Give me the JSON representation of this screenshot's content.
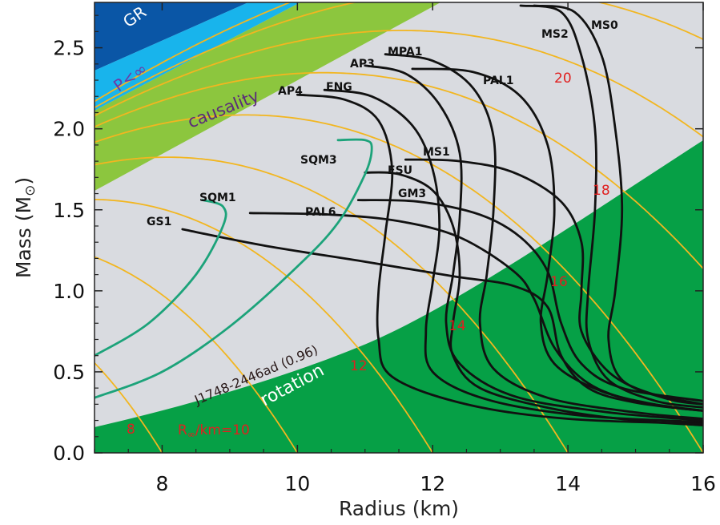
{
  "chart_data": {
    "type": "line",
    "xlabel": "Radius (km)",
    "ylabel": "Mass (M",
    "ylabel_symbol": "⊙",
    "ylabel_close": ")",
    "xlim": [
      7,
      16
    ],
    "ylim": [
      0,
      2.78
    ],
    "xticks": [
      8,
      10,
      12,
      14,
      16
    ],
    "xtick_labels": [
      "8",
      "10",
      "12",
      "14",
      "16"
    ],
    "yticks": [
      0.0,
      0.5,
      1.0,
      1.5,
      2.0,
      2.5
    ],
    "ytick_labels": [
      "0.0",
      "0.5",
      "1.0",
      "1.5",
      "2.0",
      "2.5"
    ],
    "colors": {
      "background": "#d9dbe0",
      "gr_region": "#0a56a6",
      "p_infinity_region": "#18b4ec",
      "causality_region": "#8cc63e",
      "rotation_region": "#06a046",
      "r_infinity_contours": "#f2b620",
      "normal_eos": "#111111",
      "strange_quark_eos": "#1ca37a"
    },
    "regions": [
      {
        "name": "GR",
        "label": "GR"
      },
      {
        "name": "P<∞",
        "label": "P<∞"
      },
      {
        "name": "causality",
        "label": "causality"
      },
      {
        "name": "rotation",
        "label": "rotation",
        "annotation": "J1748-2446ad (0.96)"
      }
    ],
    "r_infinity_contours": {
      "label_prefix": "R",
      "label_subscript": "∞",
      "label_suffix": "/km=",
      "values": [
        8,
        10,
        12,
        14,
        16,
        18,
        20
      ],
      "labels": [
        "8",
        "10",
        "12",
        "14",
        "16",
        "18",
        "20"
      ]
    },
    "series": [
      {
        "name": "GS1",
        "kind": "normal",
        "points": [
          [
            8.3,
            1.38
          ],
          [
            9.5,
            1.28
          ],
          [
            11,
            1.18
          ],
          [
            12.3,
            1.09
          ],
          [
            13.2,
            1.03
          ],
          [
            13.7,
            0.9
          ],
          [
            13.9,
            0.6
          ],
          [
            14.3,
            0.4
          ],
          [
            15,
            0.31
          ],
          [
            16,
            0.26
          ]
        ]
      },
      {
        "name": "PAL6",
        "kind": "normal",
        "points": [
          [
            9.3,
            1.48
          ],
          [
            10.5,
            1.47
          ],
          [
            11.5,
            1.43
          ],
          [
            12.4,
            1.33
          ],
          [
            13.2,
            1.12
          ],
          [
            13.5,
            0.95
          ],
          [
            13.8,
            0.65
          ],
          [
            14.3,
            0.43
          ],
          [
            15,
            0.32
          ],
          [
            16,
            0.26
          ]
        ]
      },
      {
        "name": "GM3",
        "kind": "normal",
        "points": [
          [
            10.9,
            1.56
          ],
          [
            11.8,
            1.55
          ],
          [
            12.7,
            1.47
          ],
          [
            13.3,
            1.33
          ],
          [
            13.7,
            1.12
          ],
          [
            13.9,
            0.8
          ],
          [
            14.2,
            0.55
          ],
          [
            14.8,
            0.4
          ],
          [
            16,
            0.32
          ]
        ]
      },
      {
        "name": "FSU",
        "kind": "normal",
        "points": [
          [
            11,
            1.73
          ],
          [
            11.5,
            1.72
          ],
          [
            12,
            1.62
          ],
          [
            12.3,
            1.4
          ],
          [
            12.4,
            1.1
          ],
          [
            12.3,
            0.8
          ],
          [
            12.3,
            0.6
          ],
          [
            12.7,
            0.4
          ],
          [
            13.8,
            0.27
          ],
          [
            15,
            0.2
          ],
          [
            16,
            0.17
          ]
        ]
      },
      {
        "name": "MS1",
        "kind": "normal",
        "points": [
          [
            11.6,
            1.81
          ],
          [
            12.4,
            1.8
          ],
          [
            13.2,
            1.73
          ],
          [
            13.9,
            1.55
          ],
          [
            14.2,
            1.3
          ],
          [
            14.2,
            1.0
          ],
          [
            14.2,
            0.75
          ],
          [
            14.6,
            0.5
          ],
          [
            15.2,
            0.37
          ],
          [
            16,
            0.3
          ]
        ]
      },
      {
        "name": "AP4",
        "kind": "normal",
        "points": [
          [
            10,
            2.21
          ],
          [
            10.7,
            2.18
          ],
          [
            11.2,
            2.05
          ],
          [
            11.4,
            1.75
          ],
          [
            11.3,
            1.35
          ],
          [
            11.2,
            1.0
          ],
          [
            11.2,
            0.7
          ],
          [
            11.4,
            0.47
          ],
          [
            12.5,
            0.3
          ],
          [
            14,
            0.21
          ],
          [
            16,
            0.18
          ]
        ]
      },
      {
        "name": "ENG",
        "kind": "normal",
        "points": [
          [
            10.4,
            2.24
          ],
          [
            11.1,
            2.2
          ],
          [
            11.7,
            2.02
          ],
          [
            12,
            1.75
          ],
          [
            12.1,
            1.4
          ],
          [
            12,
            1.05
          ],
          [
            11.9,
            0.75
          ],
          [
            12,
            0.5
          ],
          [
            12.8,
            0.33
          ],
          [
            14.2,
            0.23
          ],
          [
            16,
            0.19
          ]
        ]
      },
      {
        "name": "AP3",
        "kind": "normal",
        "points": [
          [
            11,
            2.39
          ],
          [
            11.6,
            2.34
          ],
          [
            12.1,
            2.15
          ],
          [
            12.4,
            1.85
          ],
          [
            12.4,
            1.45
          ],
          [
            12.3,
            1.1
          ],
          [
            12.2,
            0.8
          ],
          [
            12.4,
            0.55
          ],
          [
            13.2,
            0.35
          ],
          [
            14.6,
            0.25
          ],
          [
            16,
            0.2
          ]
        ]
      },
      {
        "name": "MPA1",
        "kind": "normal",
        "points": [
          [
            11.3,
            2.46
          ],
          [
            12,
            2.42
          ],
          [
            12.6,
            2.25
          ],
          [
            12.9,
            1.95
          ],
          [
            12.9,
            1.5
          ],
          [
            12.8,
            1.1
          ],
          [
            12.7,
            0.8
          ],
          [
            12.9,
            0.52
          ],
          [
            13.7,
            0.34
          ],
          [
            15,
            0.25
          ],
          [
            16,
            0.21
          ]
        ]
      },
      {
        "name": "PAL1",
        "kind": "normal",
        "points": [
          [
            11.7,
            2.37
          ],
          [
            12.6,
            2.35
          ],
          [
            13.3,
            2.2
          ],
          [
            13.7,
            1.9
          ],
          [
            13.8,
            1.5
          ],
          [
            13.7,
            1.1
          ],
          [
            13.6,
            0.8
          ],
          [
            13.8,
            0.55
          ],
          [
            14.5,
            0.38
          ],
          [
            15.4,
            0.29
          ],
          [
            16,
            0.26
          ]
        ]
      },
      {
        "name": "MS2",
        "kind": "normal",
        "points": [
          [
            13.3,
            2.76
          ],
          [
            13.9,
            2.72
          ],
          [
            14.2,
            2.45
          ],
          [
            14.4,
            2.0
          ],
          [
            14.4,
            1.5
          ],
          [
            14.3,
            1.0
          ],
          [
            14.3,
            0.7
          ],
          [
            14.6,
            0.45
          ],
          [
            15.3,
            0.32
          ],
          [
            16,
            0.28
          ]
        ]
      },
      {
        "name": "MS0",
        "kind": "normal",
        "points": [
          [
            13.5,
            2.76
          ],
          [
            14.1,
            2.72
          ],
          [
            14.5,
            2.45
          ],
          [
            14.7,
            2.0
          ],
          [
            14.8,
            1.5
          ],
          [
            14.7,
            1.0
          ],
          [
            14.6,
            0.7
          ],
          [
            14.8,
            0.45
          ],
          [
            15.5,
            0.33
          ],
          [
            16,
            0.3
          ]
        ]
      },
      {
        "name": "SQM1",
        "kind": "strange_quark",
        "points": [
          [
            7,
            0.6
          ],
          [
            7.8,
            0.8
          ],
          [
            8.5,
            1.1
          ],
          [
            8.9,
            1.4
          ],
          [
            8.9,
            1.52
          ],
          [
            8.6,
            1.56
          ]
        ]
      },
      {
        "name": "SQM3",
        "kind": "strange_quark",
        "points": [
          [
            7,
            0.34
          ],
          [
            8,
            0.5
          ],
          [
            9,
            0.78
          ],
          [
            10,
            1.15
          ],
          [
            10.6,
            1.42
          ],
          [
            11,
            1.72
          ],
          [
            11.1,
            1.88
          ],
          [
            11,
            1.93
          ],
          [
            10.6,
            1.93
          ]
        ]
      }
    ],
    "eos_labels": [
      "GS1",
      "PAL6",
      "GM3",
      "FSU",
      "MS1",
      "AP4",
      "ENG",
      "AP3",
      "MPA1",
      "PAL1",
      "MS2",
      "MS0",
      "SQM1",
      "SQM3"
    ]
  }
}
